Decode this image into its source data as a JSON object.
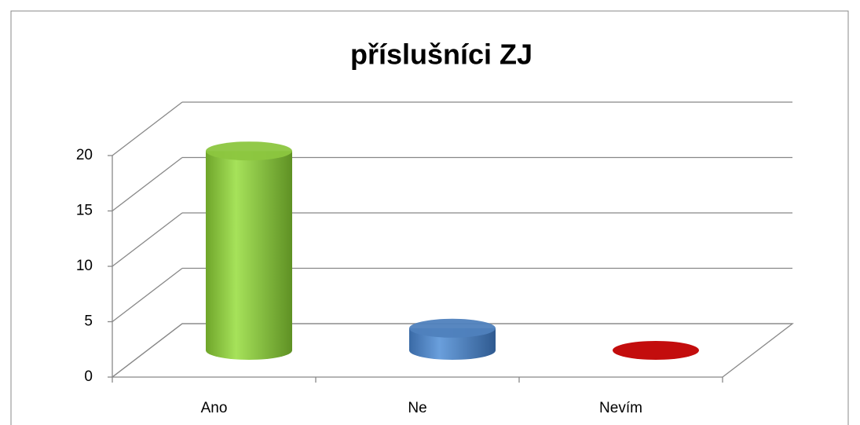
{
  "chart_data": {
    "type": "bar3d",
    "title": "příslušníci ZJ",
    "categories": [
      "Ano",
      "Ne",
      "Nevím"
    ],
    "values": [
      18,
      2,
      0
    ],
    "colors": [
      "#8cc63f",
      "#4f81bd",
      "#c00000"
    ],
    "ylim": [
      0,
      20
    ],
    "yticks": [
      0,
      5,
      10,
      15,
      20
    ],
    "grid": true
  }
}
